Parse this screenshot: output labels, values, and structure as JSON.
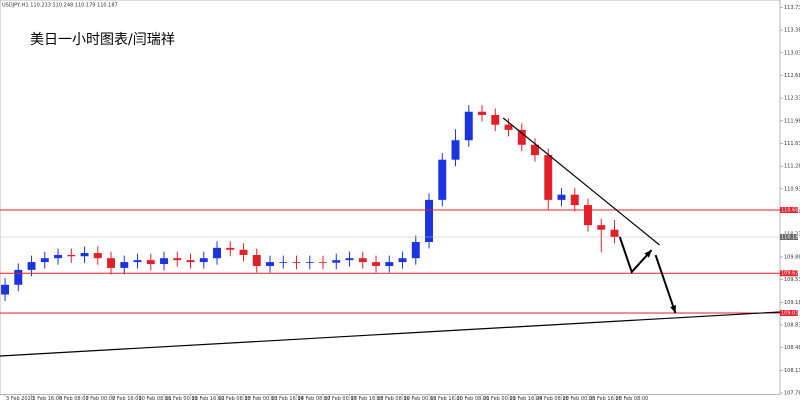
{
  "chart_data": {
    "type": "candlestick",
    "header": "USDJPY,H1  110.233 110.248 110.179 110.187",
    "title": "美日一小时图表/闫瑞祥",
    "categories": [
      "3 Feb 2020",
      null,
      "5 Feb 16:00",
      null,
      "6 Feb 08:00",
      null,
      "7 Feb 00:00",
      null,
      "7 Feb 16:00",
      null,
      "10 Feb 08:00",
      null,
      "11 Feb 00:00",
      null,
      "11 Feb 16:00",
      null,
      "12 Feb 08:00",
      null,
      "13 Feb 00:00",
      null,
      "13 Feb 16:00",
      null,
      "14 Feb 08:00",
      null,
      "17 Feb 00:00",
      null,
      "17 Feb 16:00",
      null,
      "18 Feb 08:00",
      null,
      "19 Feb 00:00",
      null,
      "19 Feb 16:00",
      null,
      "20 Feb 08:00",
      null,
      "21 Feb 00:00",
      null,
      "21 Feb 16:00",
      null,
      "24 Feb 08:00",
      null,
      "25 Feb 00:00",
      null,
      "25 Feb 16:00",
      null,
      "26 Feb 08:00"
    ],
    "open": [
      109.3,
      109.45,
      109.68,
      109.8,
      109.86,
      109.91,
      109.89,
      109.94,
      109.86,
      109.71,
      109.8,
      109.83,
      109.77,
      109.86,
      109.83,
      109.8,
      109.86,
      110.02,
      109.99,
      109.91,
      109.74,
      109.8,
      109.8,
      109.79,
      109.8,
      109.79,
      109.83,
      109.86,
      109.8,
      109.74,
      109.8,
      109.86,
      110.11,
      110.76,
      111.38,
      111.68,
      112.12,
      112.07,
      111.92,
      111.84,
      111.61,
      111.45,
      110.76,
      110.84,
      110.68,
      110.37,
      110.3
    ],
    "high": [
      109.55,
      109.78,
      109.9,
      109.96,
      110.01,
      110.01,
      110.04,
      110.04,
      109.96,
      109.9,
      109.93,
      109.93,
      109.96,
      109.96,
      109.93,
      109.96,
      110.12,
      110.12,
      110.09,
      110.01,
      109.9,
      109.9,
      109.9,
      109.9,
      109.9,
      109.93,
      109.96,
      109.96,
      109.9,
      109.9,
      109.96,
      110.21,
      110.86,
      111.48,
      111.85,
      112.22,
      112.22,
      112.17,
      112.02,
      111.94,
      111.71,
      111.55,
      110.94,
      110.94,
      110.78,
      110.47,
      110.45
    ],
    "low": [
      109.2,
      109.35,
      109.58,
      109.7,
      109.76,
      109.79,
      109.79,
      109.76,
      109.61,
      109.61,
      109.7,
      109.67,
      109.67,
      109.73,
      109.7,
      109.7,
      109.76,
      109.89,
      109.81,
      109.64,
      109.64,
      109.7,
      109.69,
      109.69,
      109.69,
      109.69,
      109.73,
      109.7,
      109.64,
      109.64,
      109.7,
      109.76,
      110.01,
      110.66,
      111.28,
      111.58,
      111.97,
      111.82,
      111.74,
      111.51,
      111.35,
      110.6,
      110.66,
      110.58,
      110.27,
      109.95,
      110.09
    ],
    "close": [
      109.45,
      109.68,
      109.8,
      109.86,
      109.91,
      109.89,
      109.94,
      109.86,
      109.71,
      109.8,
      109.83,
      109.77,
      109.86,
      109.83,
      109.8,
      109.86,
      110.02,
      109.99,
      109.91,
      109.74,
      109.8,
      109.8,
      109.79,
      109.8,
      109.79,
      109.83,
      109.86,
      109.8,
      109.74,
      109.8,
      109.86,
      110.11,
      110.76,
      111.38,
      111.68,
      112.12,
      112.07,
      111.92,
      111.84,
      111.61,
      111.45,
      110.76,
      110.84,
      110.68,
      110.37,
      110.3,
      110.187
    ],
    "up_color": "#1c34e0",
    "down_color": "#e0202a",
    "xlim": [
      -0.38,
      58.49
    ],
    "ylim": [
      107.76,
      113.844
    ],
    "yticks": [
      {
        "value": 113.73,
        "label": "113.730"
      },
      {
        "value": 113.38,
        "label": "113.380"
      },
      {
        "value": 113.03,
        "label": "113.030"
      },
      {
        "value": 112.68,
        "label": "112.680"
      },
      {
        "value": 112.33,
        "label": "112.330"
      },
      {
        "value": 111.98,
        "label": "111.980"
      },
      {
        "value": 111.63,
        "label": "111.630"
      },
      {
        "value": 111.28,
        "label": "111.280"
      },
      {
        "value": 110.93,
        "label": "110.930"
      },
      {
        "value": 110.58,
        "label": "110.580"
      },
      {
        "value": 110.23,
        "label": "110.230"
      },
      {
        "value": 109.88,
        "label": "109.880"
      },
      {
        "value": 109.53,
        "label": "109.530"
      },
      {
        "value": 109.18,
        "label": "109.180"
      },
      {
        "value": 108.83,
        "label": "108.830"
      },
      {
        "value": 108.48,
        "label": "108.480"
      },
      {
        "value": 108.13,
        "label": "108.130"
      },
      {
        "value": 107.78,
        "label": "107.780"
      }
    ],
    "current_price": {
      "value": 110.187,
      "label": "110.187"
    },
    "hlines": {
      "color": "#e0202a",
      "values": [
        110.604,
        109.628,
        109.014
      ],
      "value_labels": [
        "110.604",
        "109.628",
        "109.014"
      ]
    },
    "trend_lines": {
      "color": "#000000",
      "lines": [
        {
          "x": [
            37.6,
            49.4
          ],
          "y": [
            112.023,
            110.064
          ]
        },
        {
          "x": [
            -0.38,
            58.49
          ],
          "y": [
            108.351,
            109.03
          ]
        }
      ]
    },
    "arrows": {
      "color": "#000000",
      "lines": [
        {
          "x": [
            46.4,
            47.3,
            48.8
          ],
          "y": [
            110.187,
            109.647,
            109.986
          ]
        },
        {
          "x": [
            49.1,
            50.6
          ],
          "y": [
            109.909,
            109.014
          ]
        }
      ]
    }
  }
}
